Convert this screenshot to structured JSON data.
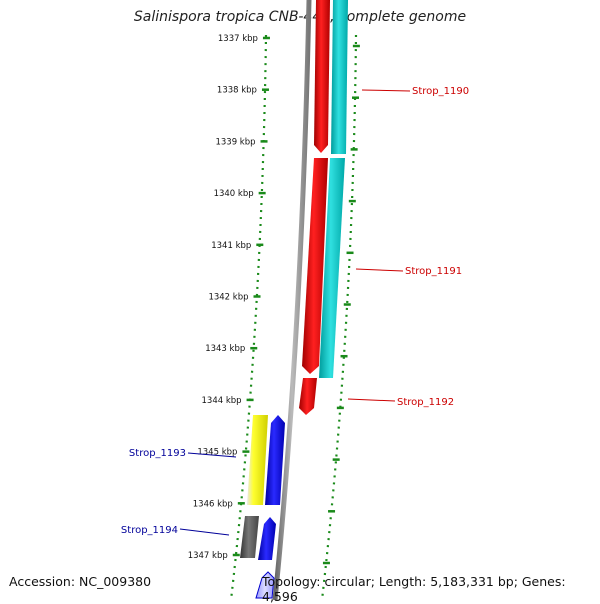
{
  "title": "Salinispora tropica CNB-440, complete genome",
  "accession_label": "Accession: NC_009380",
  "topology_label": "Topology: circular; Length: 5,183,331 bp; Genes: 4,596",
  "ruler": {
    "ticks": [
      "1337 kbp",
      "1338 kbp",
      "1339 kbp",
      "1340 kbp",
      "1341 kbp",
      "1342 kbp",
      "1343 kbp",
      "1344 kbp",
      "1345 kbp",
      "1346 kbp",
      "1347 kbp"
    ],
    "color": "#1a8a1a"
  },
  "genes": [
    {
      "name": "Strop_1190",
      "color": "#cc0000",
      "strand": "plus"
    },
    {
      "name": "Strop_1191",
      "color": "#cc0000",
      "strand": "plus"
    },
    {
      "name": "Strop_1192",
      "color": "#cc0000",
      "strand": "plus"
    },
    {
      "name": "Strop_1193",
      "color": "#000099",
      "strand": "minus"
    },
    {
      "name": "Strop_1194",
      "color": "#000099",
      "strand": "minus"
    }
  ],
  "colors": {
    "forward_gene": "#ee0000",
    "forward_gc": "#00c8c8",
    "reverse_gene": "#0000ee",
    "reverse_other": "#f0f000",
    "reverse_dark": "#555555",
    "backbone": "#999999"
  }
}
